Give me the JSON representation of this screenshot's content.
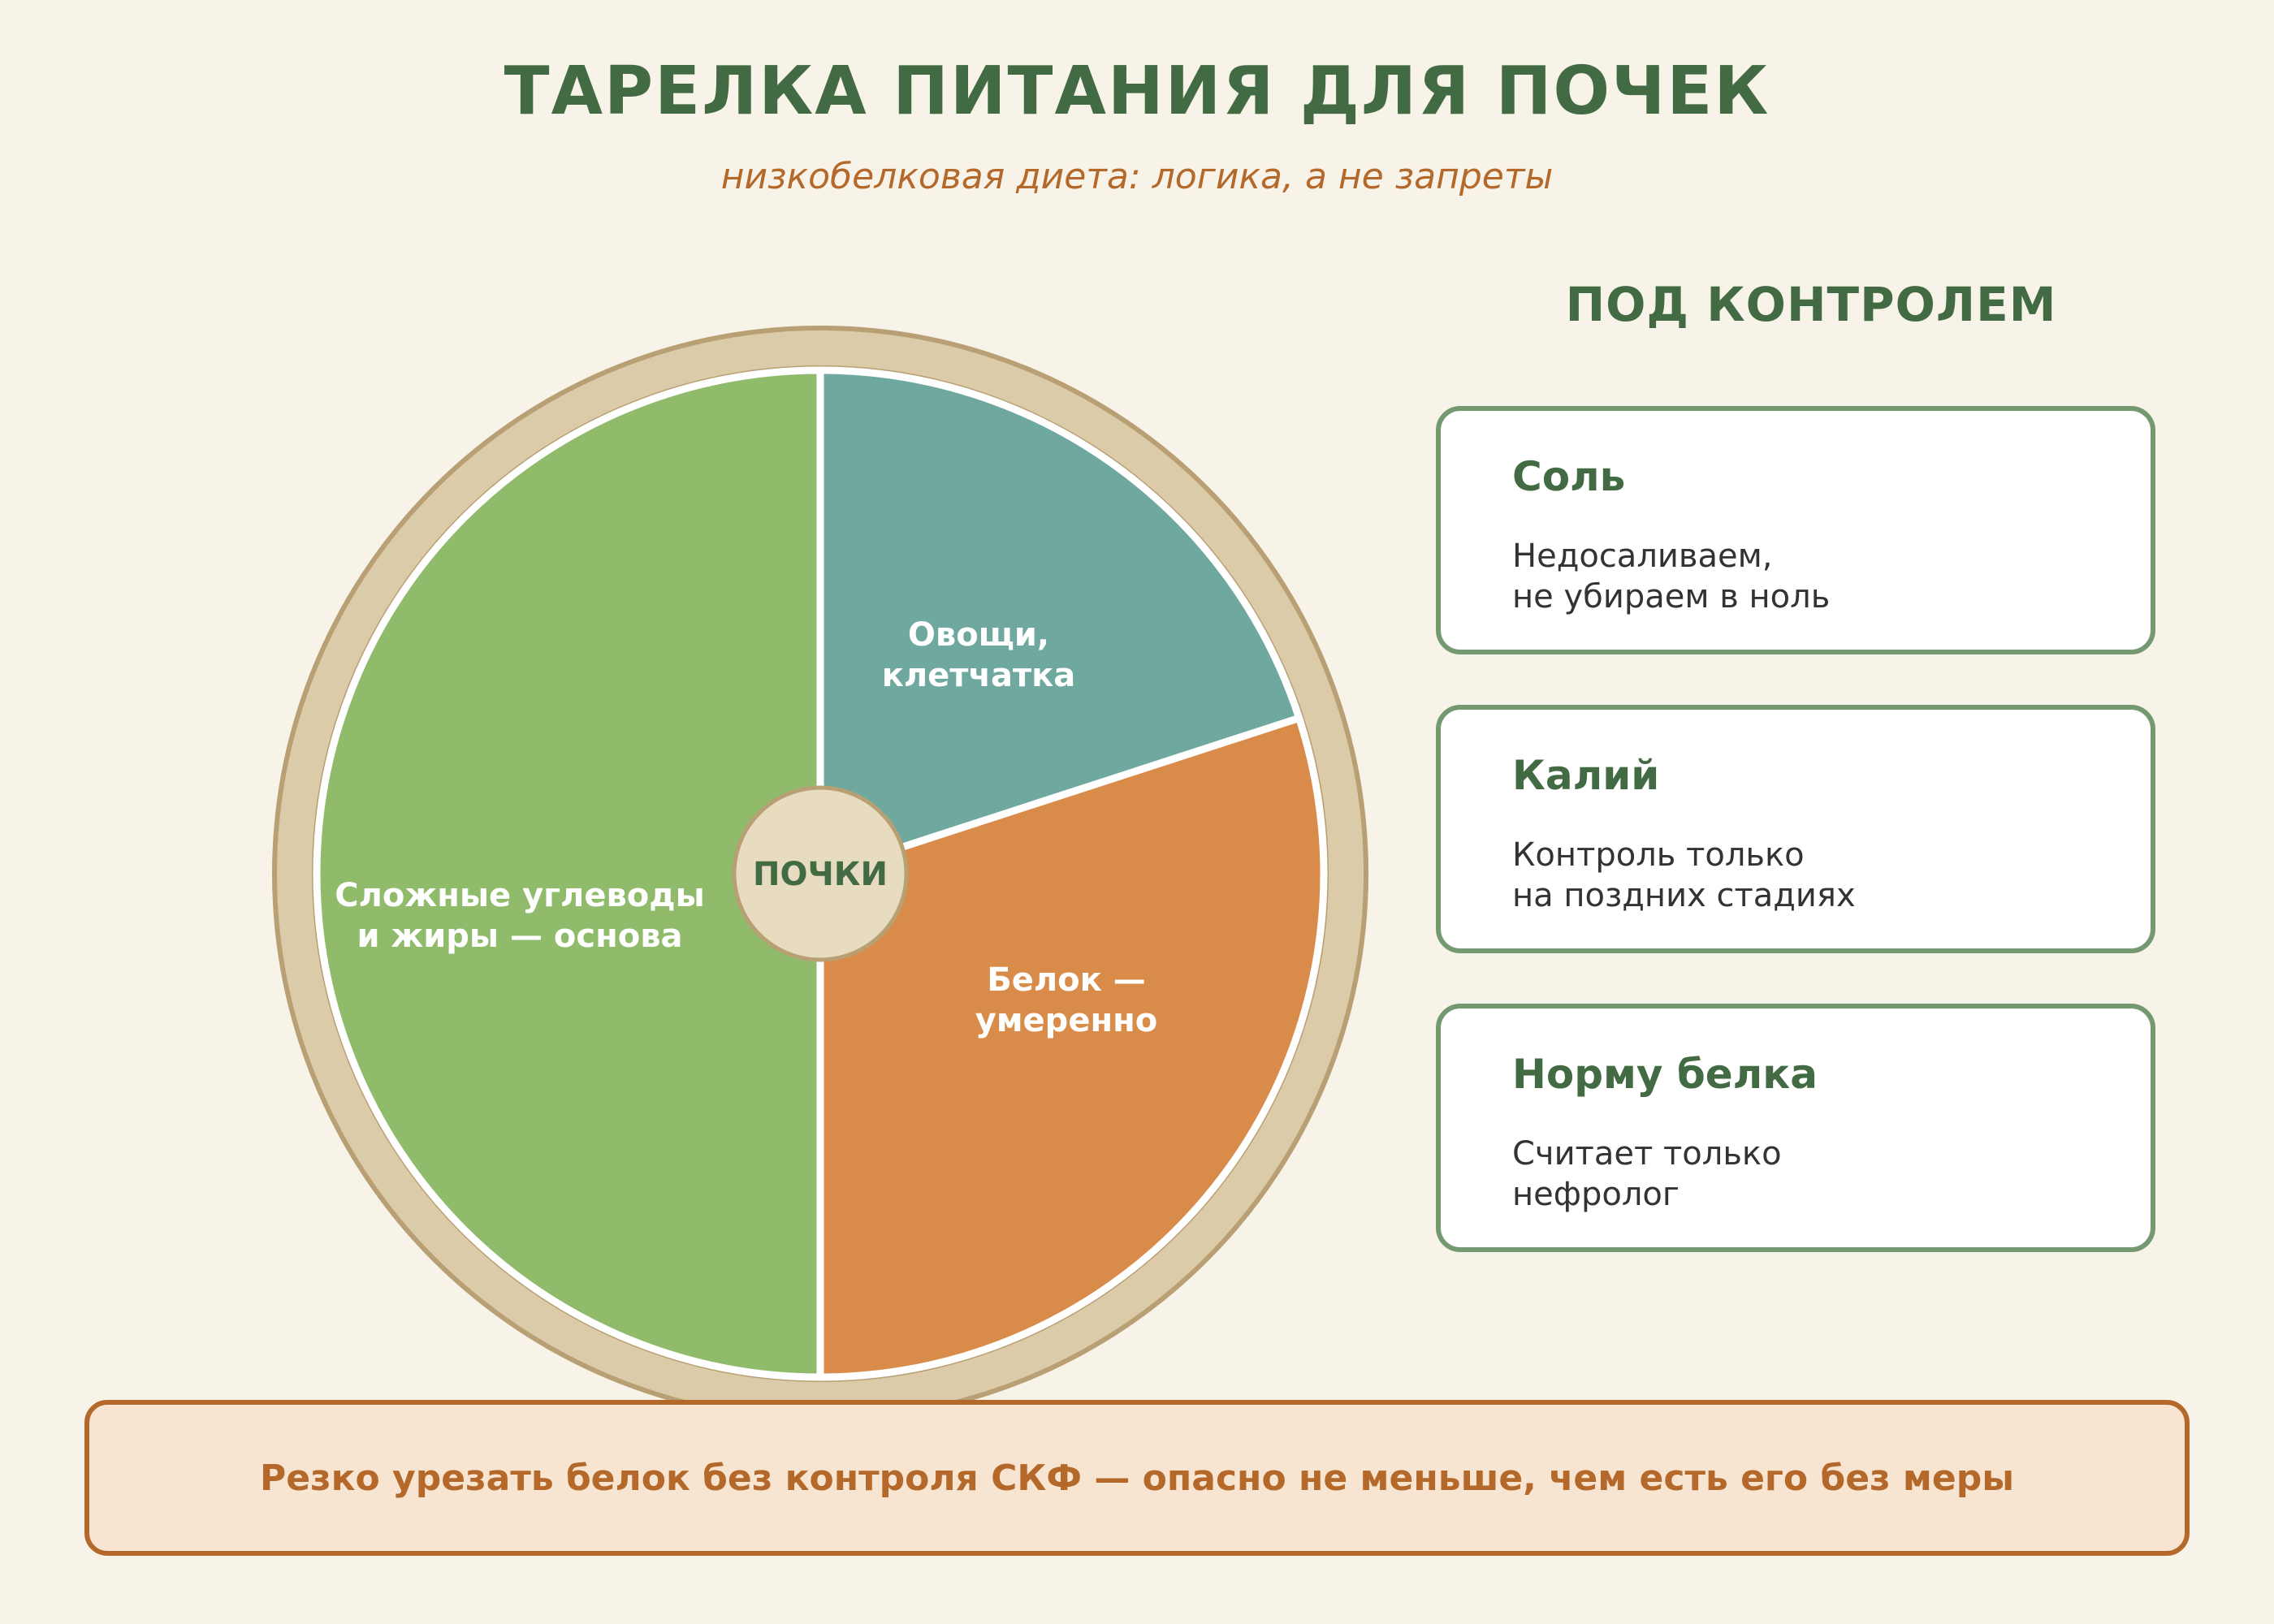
{
  "header": {
    "title": "ТАРЕЛКА ПИТАНИЯ ДЛЯ ПОЧЕК",
    "subtitle": "низкобелковая диета: логика, а не запреты"
  },
  "plate": {
    "center_label": "ПОЧКИ",
    "segments": [
      {
        "label_lines": [
          "Овощи,",
          "клетчатка"
        ],
        "color": "#6fa89e",
        "share": 0.2
      },
      {
        "label_lines": [
          "Белок —",
          "умеренно"
        ],
        "color": "#d98c4a",
        "share": 0.3
      },
      {
        "label_lines": [
          "Сложные углеводы",
          "и жиры — основа"
        ],
        "color": "#8fbb6b",
        "share": 0.5
      }
    ],
    "colors": {
      "rim": "#dccba8",
      "rim_stroke": "#b8a074",
      "hub": "#e8dcc0",
      "separator": "#ffffff",
      "hub_text": "#426b43"
    }
  },
  "side": {
    "heading": "ПОД КОНТРОЛЕМ",
    "cards": [
      {
        "title": "Соль",
        "line1": "Недосаливаем,",
        "line2": "не убираем в ноль"
      },
      {
        "title": "Калий",
        "line1": "Контроль только",
        "line2": "на поздних стадиях"
      },
      {
        "title": "Норму белка",
        "line1": "Считает только",
        "line2": "нефролог"
      }
    ]
  },
  "banner": {
    "text": "Резко урезать белок без контроля СКФ — опасно не меньше, чем есть его без меры"
  }
}
